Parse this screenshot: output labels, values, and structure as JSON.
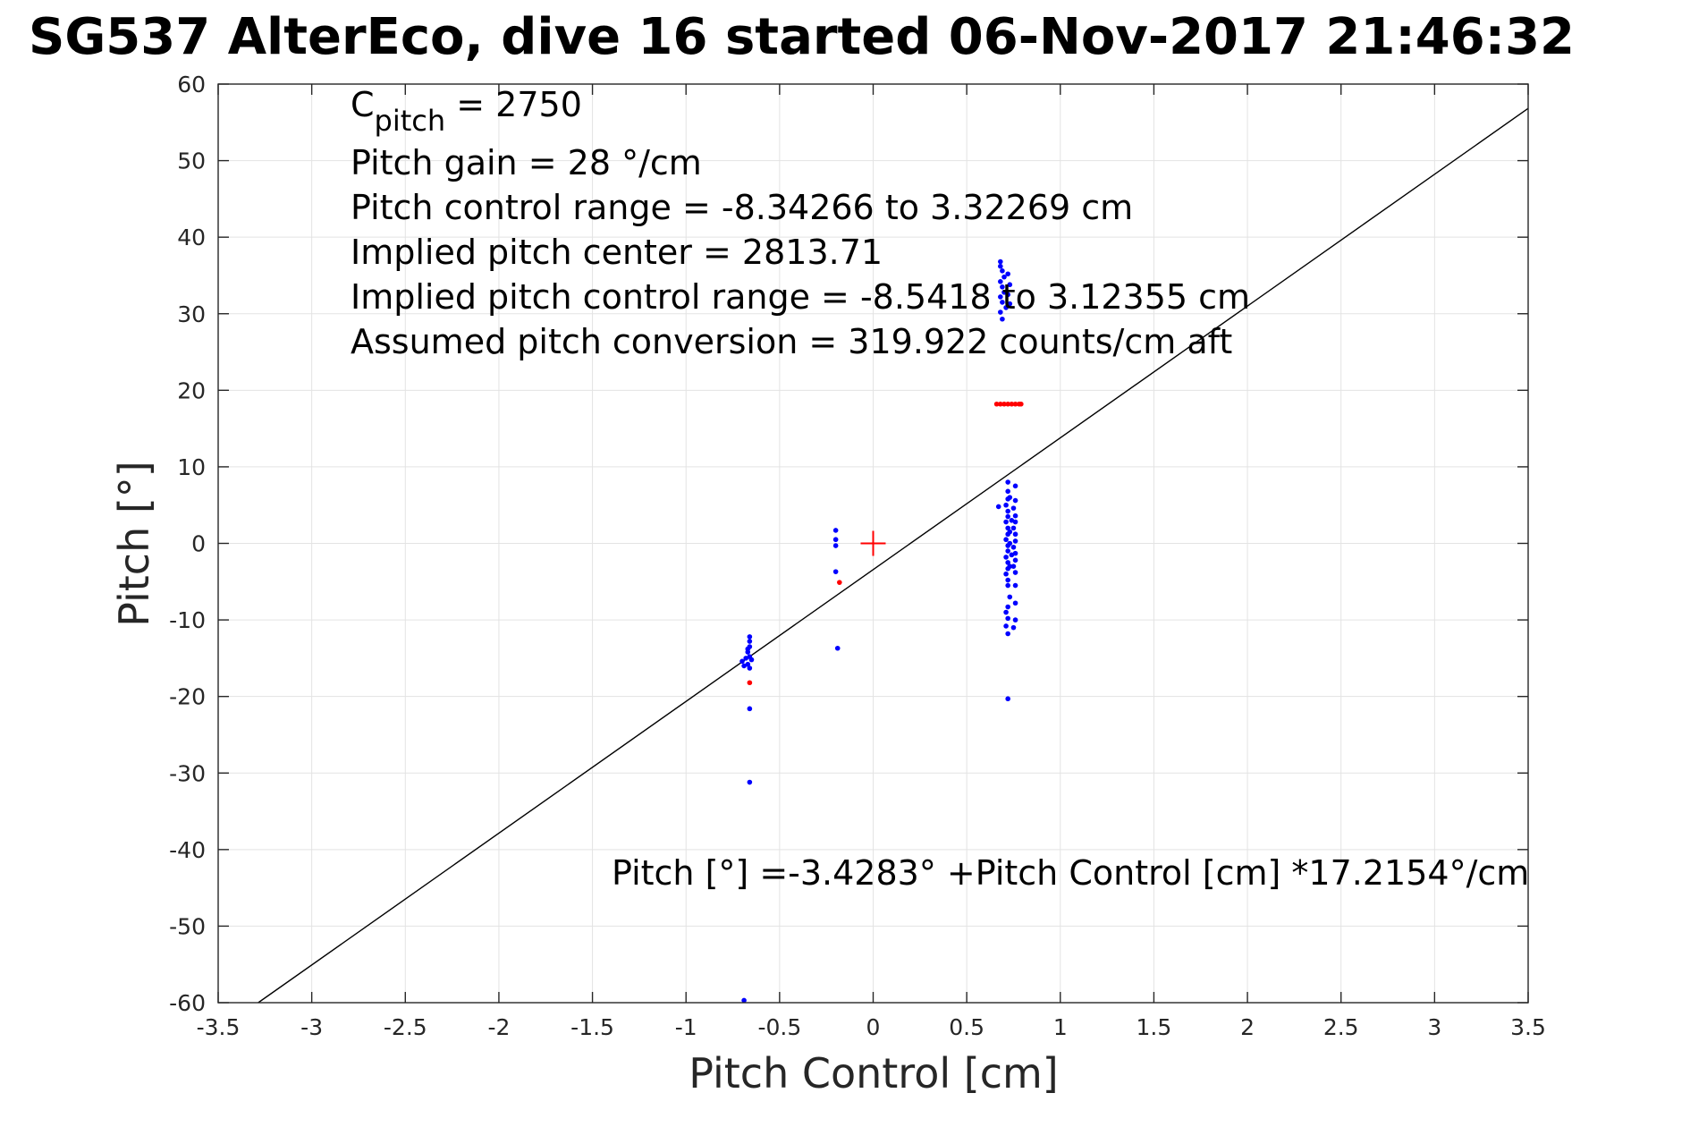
{
  "chart_data": {
    "type": "scatter",
    "title": "SG537 AlterEco, dive 16 started 06-Nov-2017 21:46:32",
    "xlabel": "Pitch Control [cm]",
    "ylabel": "Pitch [°]",
    "xlim": [
      -3.5,
      3.5
    ],
    "ylim": [
      -60,
      60
    ],
    "xticks": [
      -3.5,
      -3,
      -2.5,
      -2,
      -1.5,
      -1,
      -0.5,
      0,
      0.5,
      1,
      1.5,
      2,
      2.5,
      3,
      3.5
    ],
    "yticks": [
      -60,
      -50,
      -40,
      -30,
      -20,
      -10,
      0,
      10,
      20,
      30,
      40,
      50,
      60
    ],
    "xtick_labels": [
      "-3.5",
      "-3",
      "-2.5",
      "-2",
      "-1.5",
      "-1",
      "-0.5",
      "0",
      "0.5",
      "1",
      "1.5",
      "2",
      "2.5",
      "3",
      "3.5"
    ],
    "ytick_labels": [
      "-60",
      "-50",
      "-40",
      "-30",
      "-20",
      "-10",
      "0",
      "10",
      "20",
      "30",
      "40",
      "50",
      "60"
    ],
    "grid": true,
    "fit_line": {
      "intercept": -3.4283,
      "slope": 17.2154,
      "color": "#000000"
    },
    "center_marker": {
      "x": 0,
      "y": 0,
      "color": "#ff0000"
    },
    "series": [
      {
        "color": "#0000ff",
        "points": [
          [
            -0.68,
            -15.0
          ],
          [
            -0.67,
            -14.2
          ],
          [
            -0.66,
            -13.5
          ],
          [
            -0.66,
            -12.8
          ],
          [
            -0.66,
            -12.2
          ],
          [
            -0.67,
            -15.8
          ],
          [
            -0.66,
            -16.3
          ],
          [
            -0.69,
            -16.0
          ],
          [
            -0.7,
            -15.4
          ],
          [
            -0.66,
            -14.8
          ],
          [
            -0.67,
            -13.8
          ],
          [
            -0.65,
            -15.2
          ],
          [
            -0.66,
            -21.6
          ],
          [
            -0.66,
            -31.2
          ],
          [
            -0.69,
            -59.7
          ],
          [
            -0.2,
            1.7
          ],
          [
            -0.2,
            0.5
          ],
          [
            -0.2,
            -0.3
          ],
          [
            -0.2,
            -3.7
          ],
          [
            -0.19,
            -13.7
          ],
          [
            0.68,
            36.8
          ],
          [
            0.68,
            36.2
          ],
          [
            0.69,
            35.6
          ],
          [
            0.7,
            34.8
          ],
          [
            0.68,
            34.2
          ],
          [
            0.69,
            33.5
          ],
          [
            0.7,
            32.8
          ],
          [
            0.68,
            32.2
          ],
          [
            0.69,
            31.5
          ],
          [
            0.71,
            30.8
          ],
          [
            0.68,
            30.2
          ],
          [
            0.69,
            29.3
          ],
          [
            0.72,
            35.2
          ],
          [
            0.73,
            33.8
          ],
          [
            0.72,
            32.5
          ],
          [
            0.73,
            31.3
          ],
          [
            0.67,
            4.8
          ],
          [
            0.72,
            8.0
          ],
          [
            0.72,
            6.8
          ],
          [
            0.72,
            5.8
          ],
          [
            0.71,
            5.0
          ],
          [
            0.72,
            4.2
          ],
          [
            0.72,
            3.5
          ],
          [
            0.71,
            2.8
          ],
          [
            0.72,
            2.0
          ],
          [
            0.72,
            1.2
          ],
          [
            0.71,
            0.5
          ],
          [
            0.72,
            -0.3
          ],
          [
            0.72,
            -1.0
          ],
          [
            0.71,
            -1.8
          ],
          [
            0.72,
            -2.5
          ],
          [
            0.72,
            -3.3
          ],
          [
            0.71,
            -4.0
          ],
          [
            0.72,
            -4.8
          ],
          [
            0.72,
            -5.5
          ],
          [
            0.73,
            -7.0
          ],
          [
            0.72,
            -8.3
          ],
          [
            0.71,
            -9.0
          ],
          [
            0.72,
            -9.8
          ],
          [
            0.71,
            -10.8
          ],
          [
            0.72,
            -11.8
          ],
          [
            0.72,
            -20.3
          ],
          [
            0.73,
            6.0
          ],
          [
            0.74,
            3.0
          ],
          [
            0.73,
            1.5
          ],
          [
            0.73,
            0.0
          ],
          [
            0.74,
            -1.5
          ],
          [
            0.73,
            -3.0
          ],
          [
            0.76,
            7.5
          ],
          [
            0.76,
            5.6
          ],
          [
            0.75,
            4.6
          ],
          [
            0.76,
            3.6
          ],
          [
            0.76,
            2.8
          ],
          [
            0.75,
            2.0
          ],
          [
            0.76,
            1.2
          ],
          [
            0.76,
            0.3
          ],
          [
            0.75,
            -0.5
          ],
          [
            0.76,
            -1.3
          ],
          [
            0.76,
            -2.2
          ],
          [
            0.75,
            -3.0
          ],
          [
            0.76,
            -3.8
          ],
          [
            0.76,
            -5.5
          ],
          [
            0.76,
            -7.8
          ],
          [
            0.76,
            -10.0
          ],
          [
            0.75,
            -11.0
          ]
        ]
      },
      {
        "color": "#ff0000",
        "points": [
          [
            -0.66,
            -18.2
          ],
          [
            -0.18,
            -5.1
          ],
          [
            0.66,
            18.2
          ],
          [
            0.68,
            18.2
          ],
          [
            0.7,
            18.2
          ],
          [
            0.72,
            18.2
          ],
          [
            0.74,
            18.2
          ],
          [
            0.76,
            18.2
          ],
          [
            0.78,
            18.2
          ],
          [
            0.79,
            18.2
          ]
        ]
      }
    ],
    "annotations": {
      "c_pitch_main": "C",
      "c_pitch_sub": "pitch",
      "c_pitch_value": " = 2750",
      "lines": [
        "Pitch gain = 28 °/cm",
        "Pitch control range = -8.34266 to 3.32269 cm",
        "Implied pitch center = 2813.71",
        "Implied pitch control range = -8.5418 to 3.12355 cm",
        "Assumed pitch conversion = 319.922 counts/cm aft"
      ],
      "fit_equation": "Pitch [°] =-3.4283° +Pitch Control [cm] *17.2154°/cm"
    }
  }
}
